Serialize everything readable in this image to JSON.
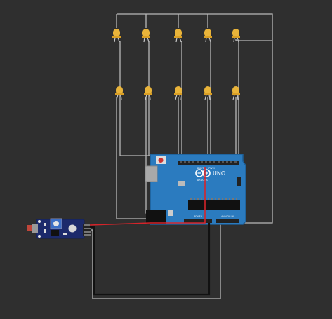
{
  "board": {
    "name": "UNO",
    "brand": "ARDUINO",
    "digital_header": "DIGITAL (PWM ~)",
    "analog_header": "ANALOG IN",
    "power_header": "POWER"
  },
  "leds": {
    "color": "#e9b43a",
    "lead_color": "#c9c9c9",
    "top_row_count": 5,
    "bottom_row_count": 5
  },
  "sensor": {
    "type": "module",
    "board_color": "#1c2a6b"
  },
  "colors": {
    "background": "#2f2f2f",
    "arduino_board": "#2b7bbf",
    "arduino_outline": "#1d5e96",
    "wire_gray": "#b9b9b9",
    "wire_black": "#111111",
    "wire_red": "#d6242a"
  }
}
